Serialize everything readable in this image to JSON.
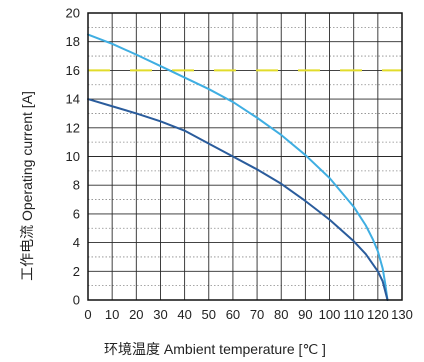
{
  "chart_data": {
    "type": "line",
    "xlabel": "环境温度 Ambient temperature [℃ ]",
    "ylabel": "工作电流 Operating current [A]",
    "xlim": [
      0,
      130
    ],
    "ylim": [
      0,
      20
    ],
    "x_ticks": [
      "0",
      "10",
      "20",
      "30",
      "40",
      "50",
      "60",
      "70",
      "80",
      "90",
      "100",
      "110",
      "120",
      "130"
    ],
    "y_ticks": [
      "0",
      "2",
      "4",
      "6",
      "8",
      "10",
      "12",
      "14",
      "16",
      "18",
      "20"
    ],
    "grid": true,
    "reference_lines": [
      {
        "y": 16,
        "color": "#e2dc2a"
      }
    ],
    "series": [
      {
        "color": "#3faee2",
        "x": [
          0,
          10,
          20,
          30,
          40,
          50,
          60,
          70,
          80,
          90,
          100,
          110,
          115,
          118,
          120,
          122,
          123,
          124
        ],
        "y": [
          18.5,
          17.85,
          17.1,
          16.3,
          15.5,
          14.7,
          13.8,
          12.7,
          11.5,
          10.1,
          8.5,
          6.5,
          5.2,
          4.2,
          3.4,
          2.2,
          1.2,
          0
        ]
      },
      {
        "color": "#2a5c9c",
        "x": [
          0,
          10,
          20,
          30,
          40,
          50,
          60,
          70,
          80,
          90,
          100,
          110,
          115,
          120,
          122,
          124
        ],
        "y": [
          14.0,
          13.5,
          13.0,
          12.45,
          11.8,
          10.9,
          10.0,
          9.1,
          8.1,
          6.9,
          5.6,
          4.1,
          3.2,
          2.0,
          1.3,
          0
        ]
      }
    ]
  }
}
